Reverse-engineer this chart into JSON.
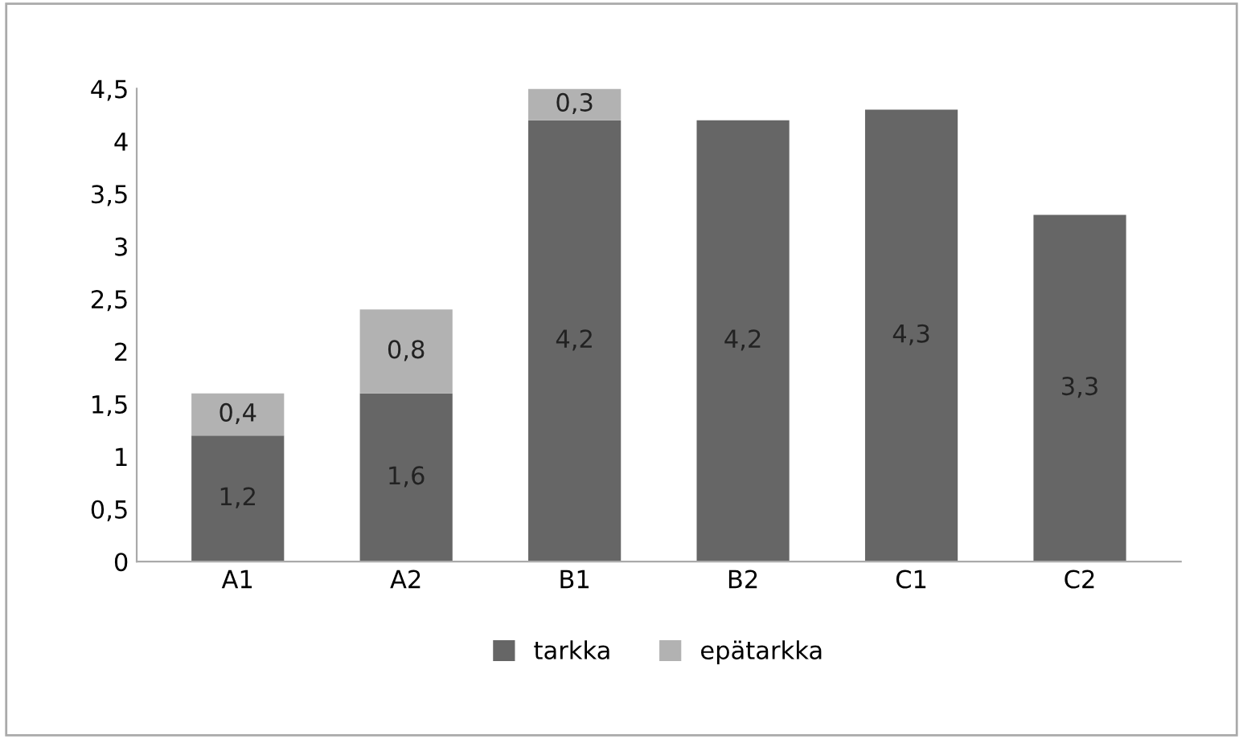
{
  "chart_data": {
    "type": "bar",
    "stacked": true,
    "categories": [
      "A1",
      "A2",
      "B1",
      "B2",
      "C1",
      "C2"
    ],
    "series": [
      {
        "name": "tarkka",
        "color": "#666666",
        "values": [
          1.2,
          1.6,
          4.2,
          4.2,
          4.3,
          3.3
        ],
        "value_labels": [
          "1,2",
          "1,6",
          "4,2",
          "4,2",
          "4,3",
          "3,3"
        ]
      },
      {
        "name": "epätarkka",
        "color": "#b2b2b2",
        "values": [
          0.4,
          0.8,
          0.3,
          null,
          null,
          null
        ],
        "value_labels": [
          "0,4",
          "0,8",
          "0,3",
          null,
          null,
          null
        ]
      }
    ],
    "ylim": [
      0,
      4.5
    ],
    "yticks": [
      0,
      {
        "value": 0.5,
        "label": "0,5"
      },
      1,
      {
        "value": 1.5,
        "label": "1,5"
      },
      2,
      {
        "value": 2.5,
        "label": "2,5"
      },
      3,
      {
        "value": 3.5,
        "label": "3,5"
      },
      4,
      {
        "value": 4.5,
        "label": "4,5"
      }
    ],
    "grid": false,
    "legend": "bottom"
  }
}
